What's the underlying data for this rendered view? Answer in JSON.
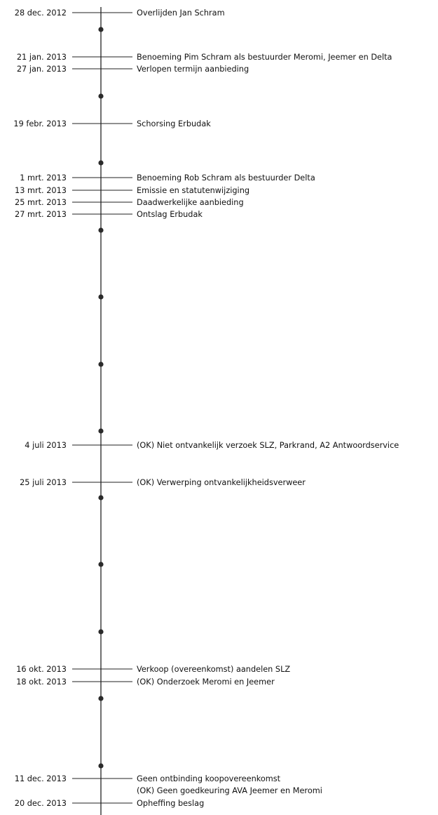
{
  "timeline": {
    "events": [
      {
        "date": "28 dec. 2012",
        "label": "Overlijden Jan Schram"
      },
      {
        "date": "21 jan. 2013",
        "label": "Benoeming Pim Schram als bestuurder Meromi, Jeemer en Delta"
      },
      {
        "date": "27 jan. 2013",
        "label": "Verlopen termijn aanbieding"
      },
      {
        "date": "19 febr. 2013",
        "label": "Schorsing Erbudak"
      },
      {
        "date": "1 mrt. 2013",
        "label": "Benoeming Rob Schram als bestuurder Delta"
      },
      {
        "date": "13 mrt. 2013",
        "label": "Emissie en statutenwijziging"
      },
      {
        "date": "25 mrt. 2013",
        "label": "Daadwerkelijke aanbieding"
      },
      {
        "date": "27 mrt. 2013",
        "label": "Ontslag Erbudak"
      },
      {
        "date": "4 juli 2013",
        "label": "(OK) Niet ontvankelijk verzoek SLZ, Parkrand, A2 Antwoordservice"
      },
      {
        "date": "25 juli 2013",
        "label": "(OK) Verwerping ontvankelijkheidsverweer"
      },
      {
        "date": "16 okt. 2013",
        "label": "Verkoop (overeenkomst) aandelen SLZ"
      },
      {
        "date": "18 okt. 2013",
        "label": "(OK) Onderzoek Meromi en Jeemer"
      },
      {
        "date": "11 dec. 2013",
        "label": "Geen ontbinding koopovereenkomst"
      },
      {
        "date": "",
        "label": "(OK) Geen goedkeuring AVA Jeemer en Meromi"
      },
      {
        "date": "20 dec. 2013",
        "label": "Opheffing beslag"
      }
    ],
    "month_dot_count": 12
  }
}
